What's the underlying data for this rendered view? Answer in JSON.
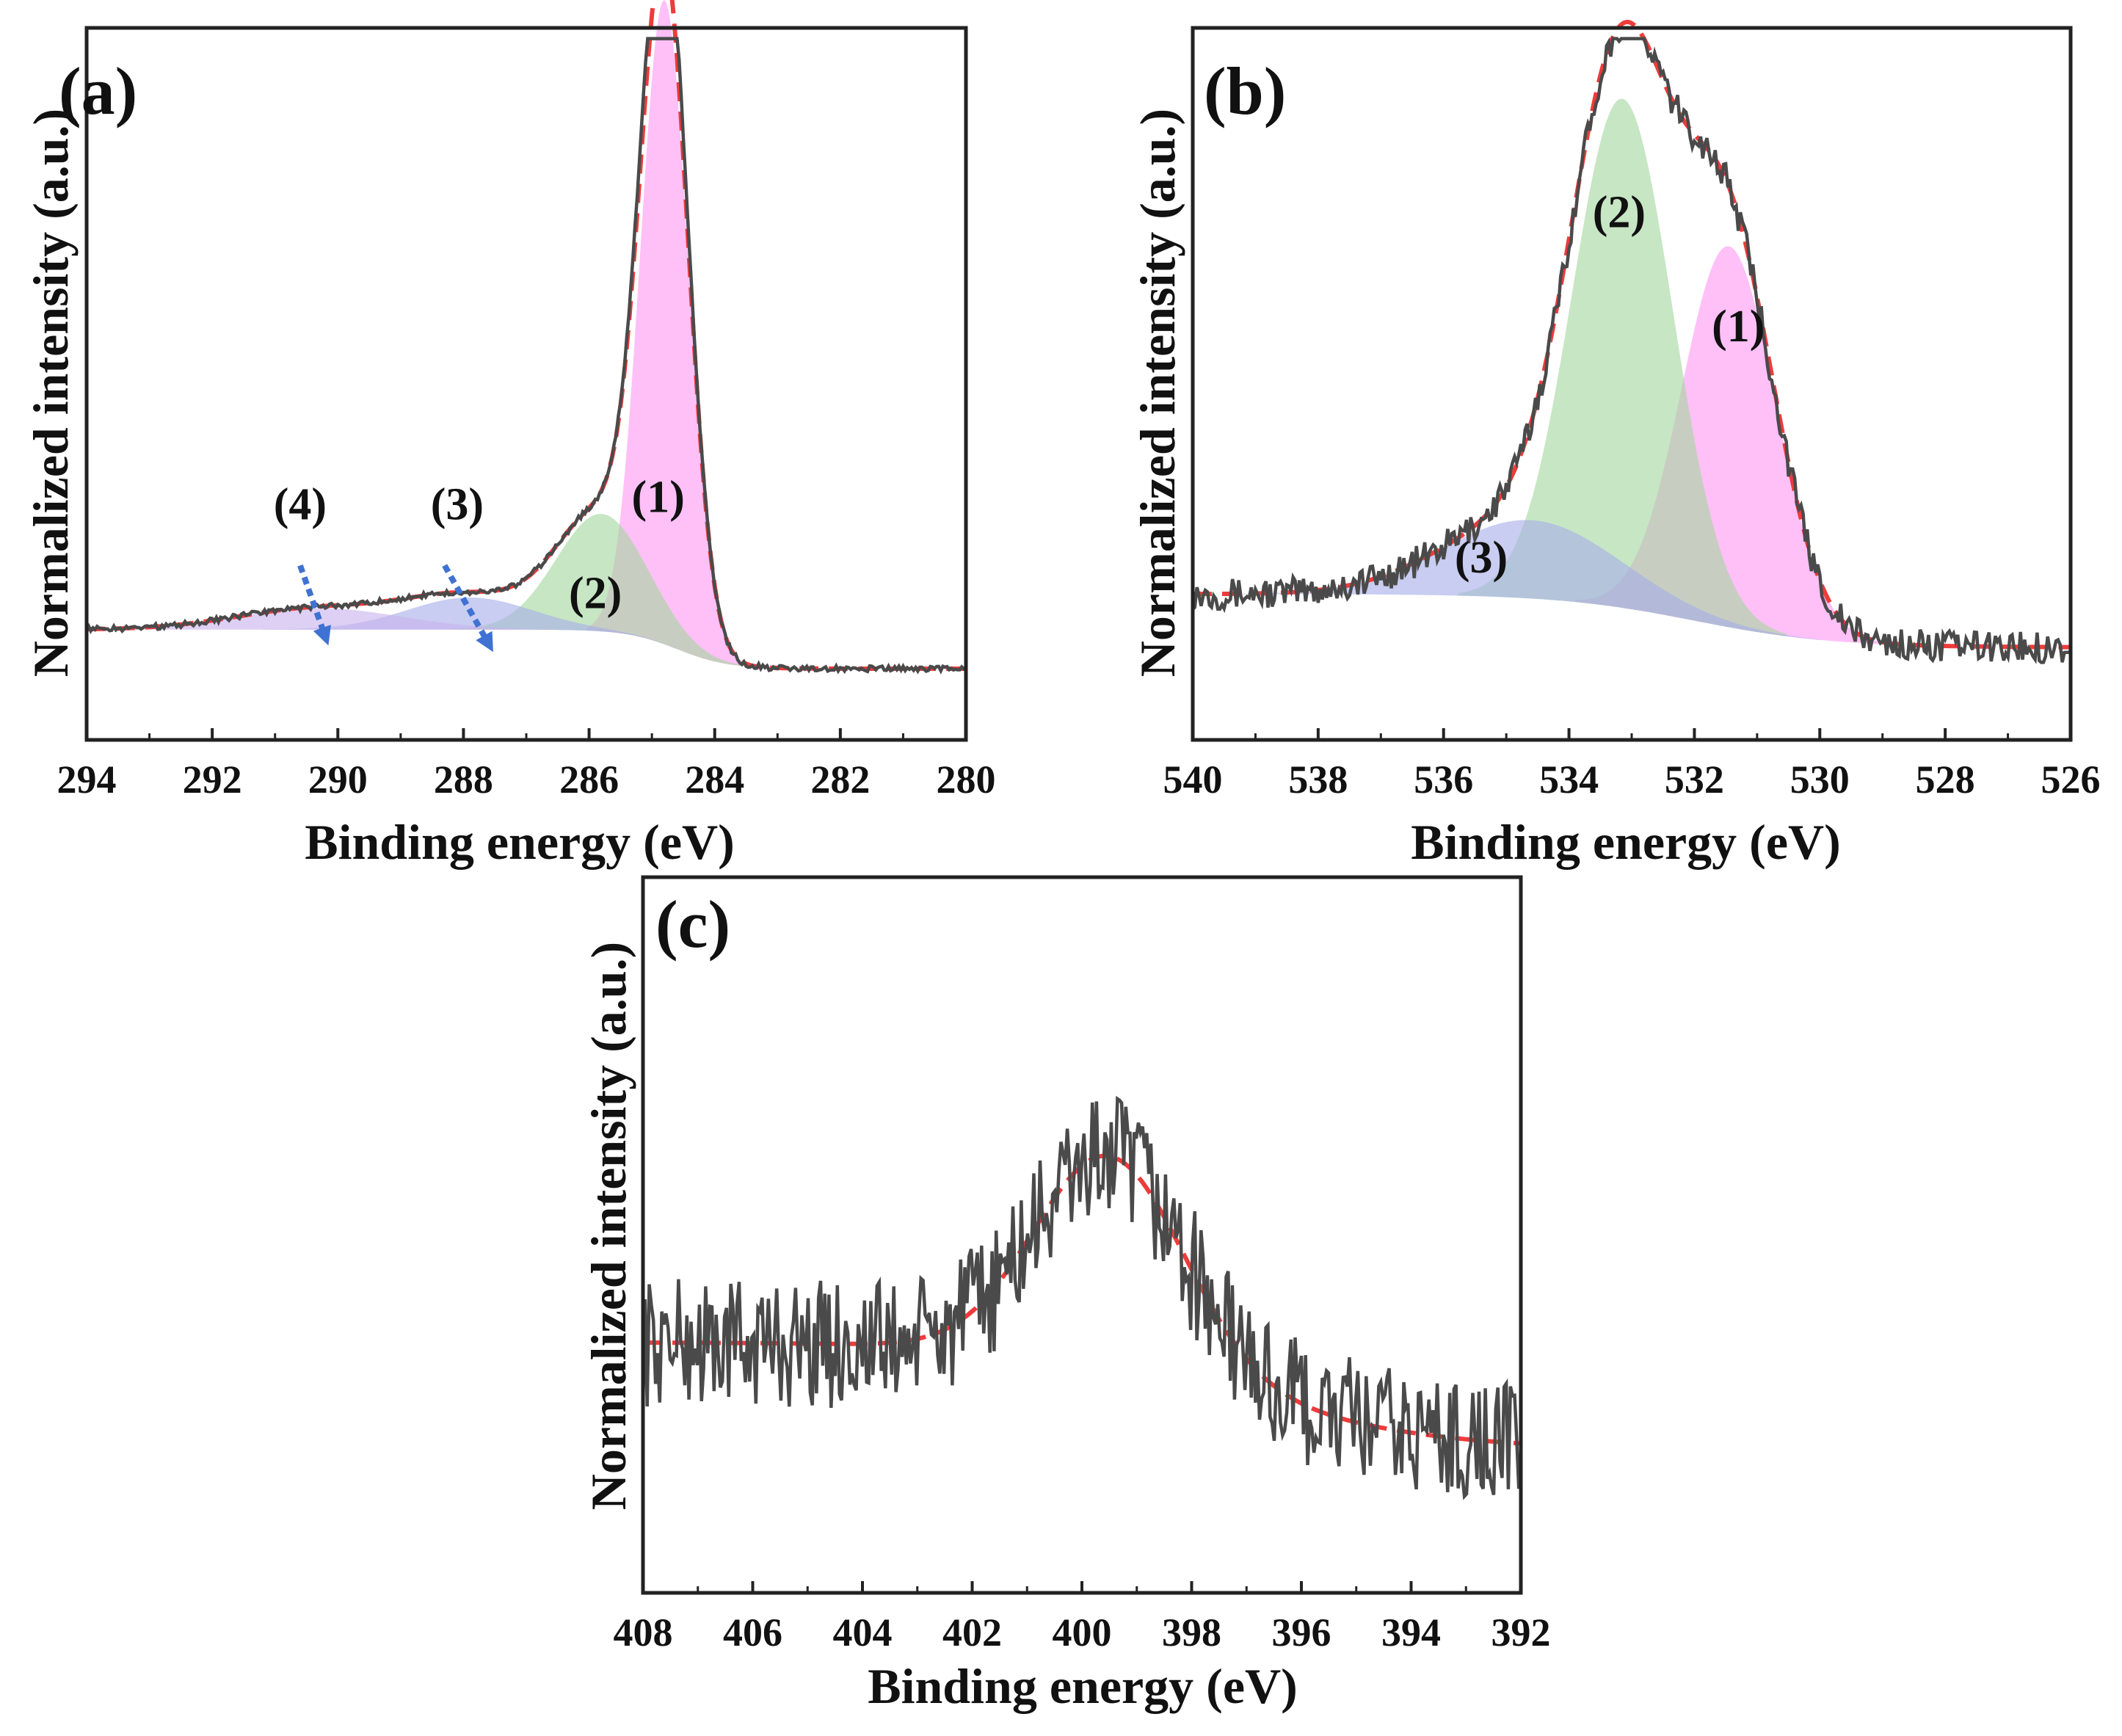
{
  "figure": {
    "colors": {
      "spectrum": "#4a4a4a",
      "fit": "#ee3b3b",
      "peak1": "#ff99f2",
      "peak2": "#a4d7a0",
      "peak3": "#a6aee8",
      "peak4": "#c9b3ee",
      "arrow": "#3f72d2"
    }
  },
  "chart_data": [
    {
      "id": "a",
      "panel_label": "(a)",
      "type": "line",
      "xlabel": "Binding energy (eV)",
      "ylabel": "Normalized intensity (a.u.)",
      "xlim": [
        294,
        280
      ],
      "x_ticks": [
        "294",
        "292",
        "290",
        "288",
        "286",
        "284",
        "282",
        "280"
      ],
      "ylim": [
        0,
        1
      ],
      "peaks": [
        {
          "name": "(1)",
          "center": 284.8,
          "sigma": 0.38,
          "amplitude": 0.905,
          "color": "peak1"
        },
        {
          "name": "(2)",
          "center": 285.8,
          "sigma": 0.72,
          "amplitude": 0.165,
          "color": "peak2"
        },
        {
          "name": "(3)",
          "center": 287.9,
          "sigma": 1.0,
          "amplitude": 0.045,
          "color": "peak3"
        },
        {
          "name": "(4)",
          "center": 290.3,
          "sigma": 1.3,
          "amplitude": 0.03,
          "color": "peak4"
        }
      ],
      "baseline": {
        "low": 0.1,
        "high": 0.155,
        "step_center": 284.6,
        "step_width": 0.4
      },
      "annotations": [
        {
          "text": "(4)",
          "x": 290.6,
          "y": 0.31,
          "arrow_from": [
            290.6,
            0.245
          ],
          "arrow_to": [
            290.2,
            0.145
          ]
        },
        {
          "text": "(3)",
          "x": 288.1,
          "y": 0.31,
          "arrow_from": [
            288.3,
            0.245
          ],
          "arrow_to": [
            287.6,
            0.135
          ]
        },
        {
          "text": "(1)",
          "x": 284.9,
          "y": 0.32,
          "arrow_from": null,
          "arrow_to": null
        },
        {
          "text": "(2)",
          "x": 285.9,
          "y": 0.185,
          "arrow_from": null,
          "arrow_to": null
        }
      ]
    },
    {
      "id": "b",
      "panel_label": "(b)",
      "type": "line",
      "xlabel": "Binding energy (eV)",
      "ylabel": "Normalized intensity (a.u.)",
      "xlim": [
        540,
        526
      ],
      "x_ticks": [
        "540",
        "538",
        "536",
        "534",
        "532",
        "530",
        "528",
        "526"
      ],
      "ylim": [
        0,
        1
      ],
      "peaks": [
        {
          "name": "(1)",
          "center": 531.45,
          "sigma": 0.75,
          "amplitude": 0.535,
          "color": "peak1"
        },
        {
          "name": "(2)",
          "center": 533.15,
          "sigma": 0.8,
          "amplitude": 0.715,
          "color": "peak2"
        },
        {
          "name": "(3)",
          "center": 534.6,
          "sigma": 1.4,
          "amplitude": 0.11,
          "color": "peak3"
        }
      ],
      "baseline": {
        "low": 0.13,
        "high": 0.205,
        "step_center": 532.0,
        "step_width": 1.1
      },
      "annotations": [
        {
          "text": "(2)",
          "x": 533.2,
          "y": 0.72,
          "arrow_from": null,
          "arrow_to": null
        },
        {
          "text": "(1)",
          "x": 531.3,
          "y": 0.56,
          "arrow_from": null,
          "arrow_to": null
        },
        {
          "text": "(3)",
          "x": 535.4,
          "y": 0.235,
          "arrow_from": null,
          "arrow_to": null
        }
      ]
    },
    {
      "id": "c",
      "panel_label": "(c)",
      "type": "line",
      "xlabel": "Binding energy (eV)",
      "ylabel": "Normalized intensity (a.u.)",
      "xlim": [
        408,
        392
      ],
      "x_ticks": [
        "408",
        "406",
        "404",
        "402",
        "400",
        "398",
        "396",
        "394",
        "392"
      ],
      "ylim": [
        0,
        1
      ],
      "peaks": [
        {
          "name": "",
          "center": 399.5,
          "sigma": 1.35,
          "amplitude": 0.29,
          "color": "peak2"
        }
      ],
      "baseline": {
        "low": 0.2,
        "high": 0.35,
        "step_center": 397.0,
        "step_width": 1.8
      },
      "annotations": []
    }
  ]
}
